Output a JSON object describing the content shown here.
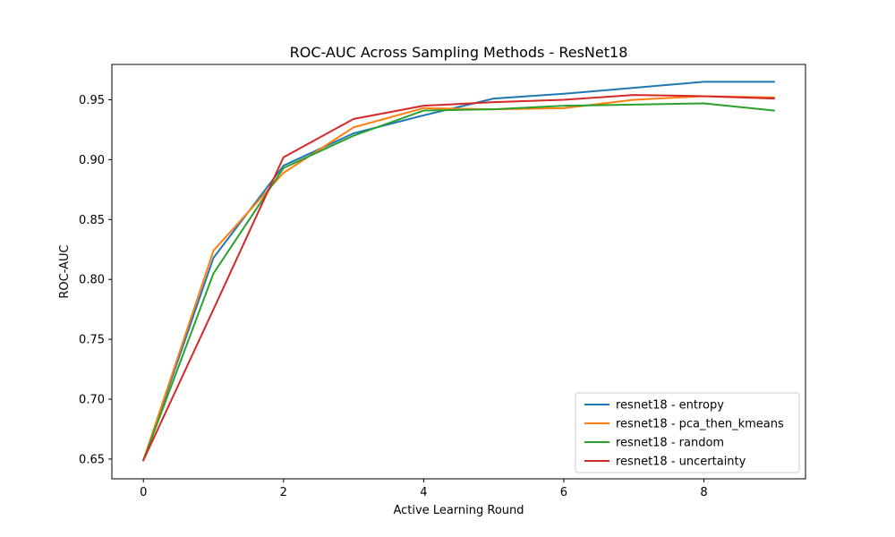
{
  "chart_data": {
    "type": "line",
    "title": "ROC-AUC Across Sampling Methods - ResNet18",
    "xlabel": "Active Learning Round",
    "ylabel": "ROC-AUC",
    "xlim": [
      -0.45,
      9.45
    ],
    "ylim": [
      0.6335,
      0.9795
    ],
    "xticks": [
      0,
      2,
      4,
      6,
      8
    ],
    "yticks": [
      0.65,
      0.7,
      0.75,
      0.8,
      0.85,
      0.9,
      0.95
    ],
    "xtick_labels": [
      "0",
      "2",
      "4",
      "6",
      "8"
    ],
    "ytick_labels": [
      "0.65",
      "0.70",
      "0.75",
      "0.80",
      "0.85",
      "0.90",
      "0.95"
    ],
    "grid": false,
    "legend_position": "lower-right",
    "x": [
      0,
      1,
      2,
      3,
      4,
      5,
      6,
      7,
      8,
      9
    ],
    "series": [
      {
        "name": "resnet18 - entropy",
        "color": "#1f77b4",
        "values": [
          0.649,
          0.818,
          0.895,
          0.922,
          0.937,
          0.951,
          0.955,
          0.96,
          0.965,
          0.965
        ]
      },
      {
        "name": "resnet18 - pca_then_kmeans",
        "color": "#ff7f0e",
        "values": [
          0.649,
          0.824,
          0.889,
          0.927,
          0.943,
          0.942,
          0.943,
          0.95,
          0.953,
          0.952
        ]
      },
      {
        "name": "resnet18 - random",
        "color": "#2ca02c",
        "values": [
          0.649,
          0.805,
          0.893,
          0.92,
          0.941,
          0.942,
          0.945,
          0.946,
          0.947,
          0.941
        ]
      },
      {
        "name": "resnet18 - uncertainty",
        "color": "#d62728",
        "values": [
          0.649,
          0.775,
          0.902,
          0.934,
          0.945,
          0.948,
          0.95,
          0.954,
          0.953,
          0.951
        ]
      }
    ]
  }
}
